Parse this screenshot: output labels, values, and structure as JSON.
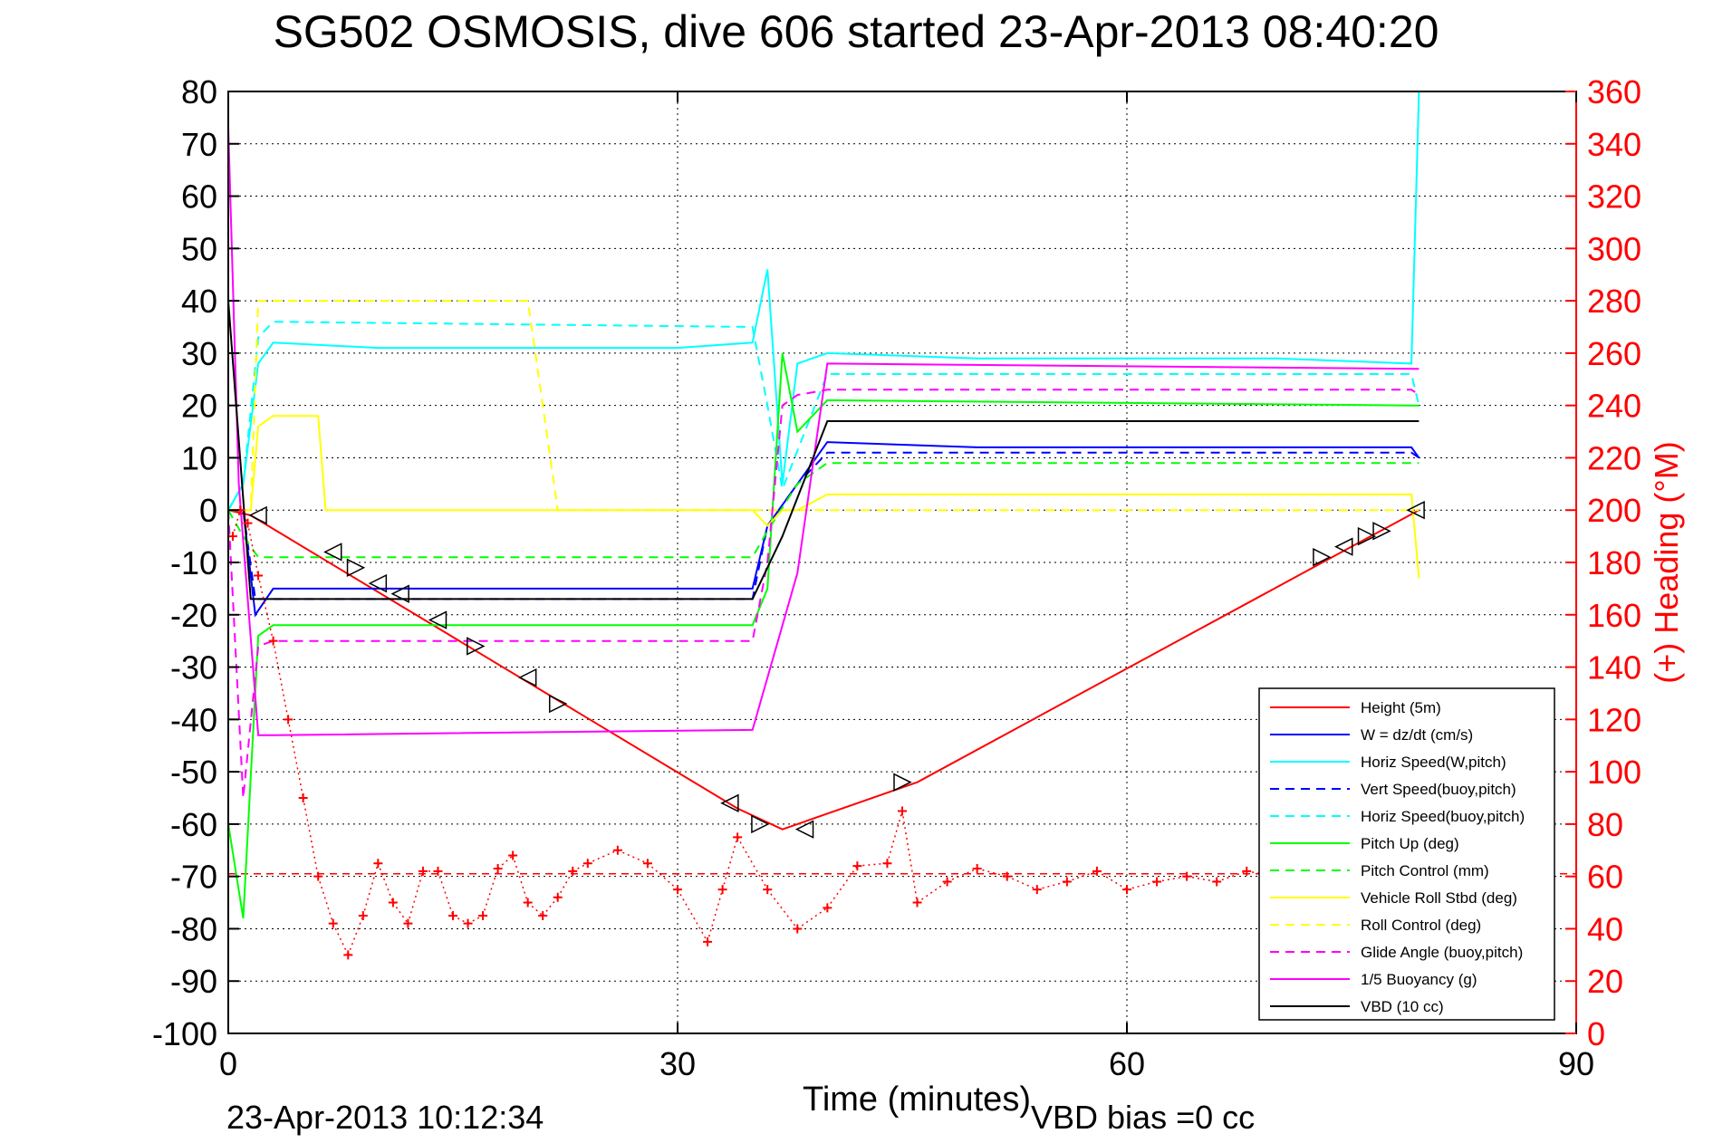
{
  "chart_data": {
    "type": "line",
    "title": "SG502 OSMOSIS, dive 606 started 23-Apr-2013 08:40:20",
    "xlabel": "Time (minutes)",
    "ylabel": "",
    "y2label": "(+) Heading (°M)",
    "xlim": [
      0,
      90
    ],
    "ylim": [
      -100,
      80
    ],
    "y2lim": [
      0,
      360
    ],
    "xticks": [
      "0",
      "30",
      "60",
      "90"
    ],
    "yticks": [
      "80",
      "70",
      "60",
      "50",
      "40",
      "30",
      "20",
      "10",
      "0",
      "-10",
      "-20",
      "-30",
      "-40",
      "-50",
      "-60",
      "-70",
      "-80",
      "-90",
      "-100"
    ],
    "y2ticks": [
      "360",
      "340",
      "320",
      "300",
      "280",
      "260",
      "240",
      "220",
      "200",
      "180",
      "160",
      "140",
      "120",
      "100",
      "80",
      "60",
      "40",
      "20",
      "0"
    ],
    "grid": true,
    "legend_position": "bottom-right",
    "footer_timestamp": "23-Apr-2013 10:12:34",
    "footer_note": "VBD bias =0 cc",
    "heading_reference": 61,
    "series": [
      {
        "name": "Height (5m)",
        "color": "#ff0000",
        "dash": "solid",
        "x": [
          0,
          1.5,
          34,
          37,
          46,
          79.5
        ],
        "y": [
          0,
          -1,
          -57,
          -61,
          -52,
          0
        ]
      },
      {
        "name": "W = dz/dt (cm/s)",
        "color": "#0000ff",
        "dash": "solid",
        "x": [
          0,
          1,
          1.8,
          3,
          10,
          20,
          30,
          35,
          36,
          38,
          40,
          50,
          60,
          70,
          79,
          79.5
        ],
        "y": [
          0,
          0,
          -20,
          -15,
          -15,
          -15,
          -15,
          -15,
          -3,
          5,
          13,
          12,
          12,
          12,
          12,
          10
        ]
      },
      {
        "name": "Horiz Speed(W,pitch)",
        "color": "#00ffff",
        "dash": "solid",
        "x": [
          0,
          1,
          2,
          3,
          10,
          20,
          30,
          35,
          36,
          37,
          38,
          40,
          50,
          60,
          70,
          79,
          79.5
        ],
        "y": [
          0,
          5,
          28,
          32,
          31,
          31,
          31,
          32,
          46,
          5,
          28,
          30,
          29,
          29,
          29,
          28,
          80
        ]
      },
      {
        "name": "Vert Speed(buoy,pitch)",
        "color": "#0000ff",
        "dash": "dashed",
        "x": [
          0,
          1,
          1.8,
          3,
          35,
          36,
          38,
          40,
          79,
          79.5
        ],
        "y": [
          0,
          0,
          -17,
          -17,
          -17,
          -3,
          5,
          11,
          11,
          10
        ]
      },
      {
        "name": "Horiz Speed(buoy,pitch)",
        "color": "#00ffff",
        "dash": "dashed",
        "x": [
          0,
          1,
          2,
          3,
          35,
          36,
          37,
          40,
          79,
          79.5
        ],
        "y": [
          0,
          5,
          33,
          36,
          35,
          20,
          4,
          26,
          26,
          20
        ]
      },
      {
        "name": "Pitch Up (deg)",
        "color": "#00ff00",
        "dash": "solid",
        "x": [
          0,
          1,
          2,
          3,
          35,
          36,
          37,
          38,
          40,
          79,
          79.5
        ],
        "y": [
          -60,
          -78,
          -24,
          -22,
          -22,
          -15,
          30,
          15,
          21,
          20,
          20
        ]
      },
      {
        "name": "Pitch Control (mm)",
        "color": "#00ff00",
        "dash": "dashed",
        "x": [
          0,
          1,
          2,
          3,
          35,
          36,
          38,
          40,
          79,
          79.5
        ],
        "y": [
          0,
          -5,
          -9,
          -9,
          -9,
          -4,
          5,
          9,
          9,
          9
        ]
      },
      {
        "name": "Vehicle Roll Stbd (deg)",
        "color": "#ffff00",
        "dash": "solid",
        "x": [
          0,
          1.5,
          2,
          3,
          6,
          6.5,
          8,
          10,
          15,
          20,
          25,
          35,
          36,
          37,
          38,
          40,
          50,
          60,
          70,
          79,
          79.5
        ],
        "y": [
          0,
          0,
          16,
          18,
          18,
          0,
          0,
          0,
          0,
          0,
          0,
          0,
          -3,
          0,
          0,
          3,
          3,
          3,
          3,
          3,
          -13
        ]
      },
      {
        "name": "Roll Control (deg)",
        "color": "#ffff00",
        "dash": "dashed",
        "x": [
          0,
          1.5,
          2,
          3,
          20,
          22,
          35,
          36,
          37,
          40,
          79,
          79.5
        ],
        "y": [
          0,
          0,
          40,
          40,
          40,
          0,
          0,
          0,
          0,
          0,
          0,
          0
        ]
      },
      {
        "name": "Glide Angle (buoy,pitch)",
        "color": "#ff00ff",
        "dash": "dashed",
        "x": [
          0,
          1,
          2,
          3,
          35,
          36,
          37,
          38,
          40,
          79,
          79.5
        ],
        "y": [
          0,
          -55,
          -26,
          -25,
          -25,
          -10,
          20,
          22,
          23,
          23,
          22
        ]
      },
      {
        "name": "1/5 Buoyancy (g)",
        "color": "#ff00ff",
        "dash": "solid",
        "x": [
          0,
          0.7,
          2,
          3,
          35,
          38,
          40,
          79,
          79.5
        ],
        "y": [
          73,
          5,
          -43,
          -43,
          -42,
          -12,
          28,
          27,
          27
        ]
      },
      {
        "name": "VBD (10 cc)",
        "color": "#000000",
        "dash": "solid",
        "x": [
          0,
          1.5,
          3,
          35,
          37,
          40,
          79,
          79.5
        ],
        "y": [
          40,
          -17,
          -17,
          -17,
          -5,
          17,
          17,
          17
        ]
      }
    ],
    "heading_series": {
      "name": "(+) Heading",
      "color": "#ff0000",
      "marker": "+",
      "axis": "right",
      "x": [
        0.3,
        0.8,
        1.3,
        2,
        3,
        4,
        5,
        6,
        7,
        8,
        9,
        10,
        11,
        12,
        13,
        14,
        15,
        16,
        17,
        18,
        19,
        20,
        21,
        22,
        23,
        24,
        26,
        28,
        30,
        32,
        33,
        34,
        36,
        38,
        40,
        42,
        44,
        45,
        46,
        48,
        50,
        52,
        54,
        56,
        58,
        60,
        62,
        64,
        66,
        68,
        70,
        72,
        74,
        76,
        78,
        79
      ],
      "y": [
        190,
        200,
        195,
        175,
        150,
        120,
        90,
        60,
        42,
        30,
        45,
        65,
        50,
        42,
        62,
        62,
        45,
        42,
        45,
        63,
        68,
        50,
        45,
        52,
        62,
        65,
        70,
        65,
        55,
        35,
        55,
        75,
        55,
        40,
        48,
        64,
        65,
        85,
        50,
        58,
        63,
        60,
        55,
        58,
        62,
        55,
        58,
        60,
        58,
        62,
        60,
        58,
        55,
        52,
        56,
        60
      ]
    },
    "direction_markers": {
      "color": "#000000",
      "points": [
        {
          "x": 2,
          "y": -1,
          "dir": "left"
        },
        {
          "x": 7,
          "y": -8,
          "dir": "left"
        },
        {
          "x": 8.5,
          "y": -11,
          "dir": "right"
        },
        {
          "x": 10,
          "y": -14,
          "dir": "left"
        },
        {
          "x": 11.5,
          "y": -16,
          "dir": "left"
        },
        {
          "x": 14,
          "y": -21,
          "dir": "left"
        },
        {
          "x": 16.5,
          "y": -26,
          "dir": "right"
        },
        {
          "x": 20,
          "y": -32,
          "dir": "left"
        },
        {
          "x": 22,
          "y": -37,
          "dir": "right"
        },
        {
          "x": 33.5,
          "y": -56,
          "dir": "left"
        },
        {
          "x": 35.5,
          "y": -60,
          "dir": "right"
        },
        {
          "x": 38.5,
          "y": -61,
          "dir": "left"
        },
        {
          "x": 45,
          "y": -52,
          "dir": "right"
        },
        {
          "x": 73,
          "y": -9,
          "dir": "right"
        },
        {
          "x": 74.5,
          "y": -7,
          "dir": "left"
        },
        {
          "x": 76,
          "y": -5,
          "dir": "right"
        },
        {
          "x": 77,
          "y": -4,
          "dir": "right"
        },
        {
          "x": 79.3,
          "y": 0,
          "dir": "left"
        }
      ]
    }
  }
}
